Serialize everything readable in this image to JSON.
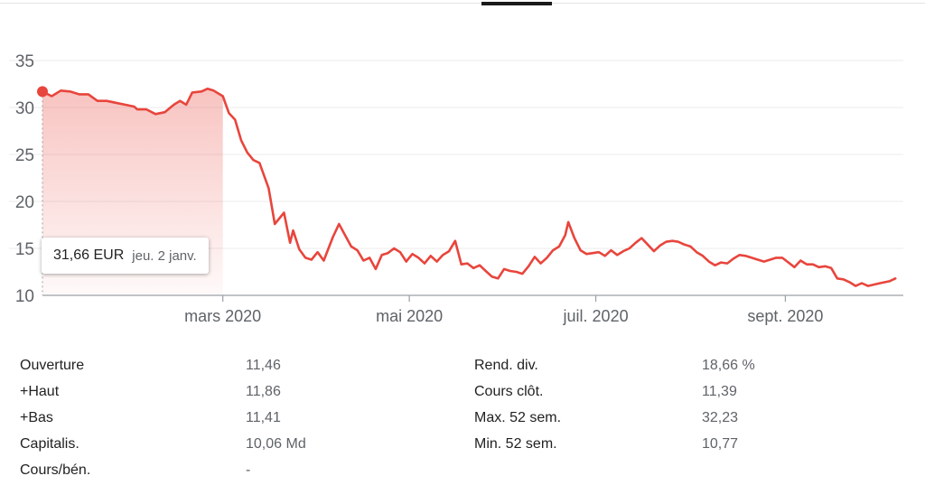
{
  "tooltip": {
    "price": "31,66 EUR",
    "date": "jeu. 2 janv."
  },
  "chart_data": {
    "type": "area",
    "ylim": [
      10,
      35
    ],
    "y_ticks": [
      10,
      15,
      20,
      25,
      30,
      35
    ],
    "x_range": [
      "2020-01-02",
      "2020-10-09"
    ],
    "x_ticks": [
      {
        "label": "mars 2020",
        "date": "2020-03-01"
      },
      {
        "label": "mai 2020",
        "date": "2020-05-01"
      },
      {
        "label": "juil. 2020",
        "date": "2020-07-01"
      },
      {
        "label": "sept. 2020",
        "date": "2020-09-01"
      }
    ],
    "highlight_range": [
      "2020-01-02",
      "2020-03-01"
    ],
    "grid": true,
    "colors": {
      "line": "#e8453c",
      "fill": "#e8453c",
      "grid": "#ebebeb",
      "axis": "#5f6368"
    },
    "points": [
      [
        "2020-01-02",
        31.7
      ],
      [
        "2020-01-05",
        31.2
      ],
      [
        "2020-01-08",
        31.8
      ],
      [
        "2020-01-11",
        31.7
      ],
      [
        "2020-01-14",
        31.4
      ],
      [
        "2020-01-17",
        31.4
      ],
      [
        "2020-01-20",
        30.7
      ],
      [
        "2020-01-23",
        30.7
      ],
      [
        "2020-01-26",
        30.5
      ],
      [
        "2020-01-29",
        30.3
      ],
      [
        "2020-02-01",
        30.1
      ],
      [
        "2020-02-02",
        29.8
      ],
      [
        "2020-02-05",
        29.8
      ],
      [
        "2020-02-08",
        29.3
      ],
      [
        "2020-02-11",
        29.5
      ],
      [
        "2020-02-14",
        30.3
      ],
      [
        "2020-02-16",
        30.7
      ],
      [
        "2020-02-18",
        30.3
      ],
      [
        "2020-02-20",
        31.6
      ],
      [
        "2020-02-23",
        31.7
      ],
      [
        "2020-02-25",
        32.0
      ],
      [
        "2020-02-27",
        31.8
      ],
      [
        "2020-03-01",
        31.2
      ],
      [
        "2020-03-03",
        29.4
      ],
      [
        "2020-03-05",
        28.7
      ],
      [
        "2020-03-07",
        26.5
      ],
      [
        "2020-03-09",
        25.2
      ],
      [
        "2020-03-11",
        24.4
      ],
      [
        "2020-03-13",
        24.1
      ],
      [
        "2020-03-16",
        21.4
      ],
      [
        "2020-03-18",
        17.6
      ],
      [
        "2020-03-21",
        18.8
      ],
      [
        "2020-03-23",
        15.6
      ],
      [
        "2020-03-24",
        16.9
      ],
      [
        "2020-03-26",
        14.9
      ],
      [
        "2020-03-28",
        14.0
      ],
      [
        "2020-03-30",
        13.8
      ],
      [
        "2020-04-01",
        14.6
      ],
      [
        "2020-04-03",
        13.7
      ],
      [
        "2020-04-06",
        16.2
      ],
      [
        "2020-04-08",
        17.6
      ],
      [
        "2020-04-10",
        16.4
      ],
      [
        "2020-04-12",
        15.2
      ],
      [
        "2020-04-14",
        14.8
      ],
      [
        "2020-04-16",
        13.7
      ],
      [
        "2020-04-18",
        14.0
      ],
      [
        "2020-04-20",
        12.8
      ],
      [
        "2020-04-22",
        14.3
      ],
      [
        "2020-04-24",
        14.5
      ],
      [
        "2020-04-26",
        15.0
      ],
      [
        "2020-04-28",
        14.6
      ],
      [
        "2020-04-30",
        13.6
      ],
      [
        "2020-05-02",
        14.4
      ],
      [
        "2020-05-04",
        14.0
      ],
      [
        "2020-05-06",
        13.4
      ],
      [
        "2020-05-08",
        14.2
      ],
      [
        "2020-05-10",
        13.6
      ],
      [
        "2020-05-12",
        14.3
      ],
      [
        "2020-05-14",
        14.7
      ],
      [
        "2020-05-16",
        15.8
      ],
      [
        "2020-05-18",
        13.3
      ],
      [
        "2020-05-20",
        13.4
      ],
      [
        "2020-05-22",
        12.9
      ],
      [
        "2020-05-24",
        13.2
      ],
      [
        "2020-05-26",
        12.6
      ],
      [
        "2020-05-28",
        12.0
      ],
      [
        "2020-05-30",
        11.8
      ],
      [
        "2020-06-01",
        12.8
      ],
      [
        "2020-06-03",
        12.6
      ],
      [
        "2020-06-05",
        12.5
      ],
      [
        "2020-06-07",
        12.3
      ],
      [
        "2020-06-09",
        13.1
      ],
      [
        "2020-06-11",
        14.1
      ],
      [
        "2020-06-13",
        13.4
      ],
      [
        "2020-06-15",
        14.0
      ],
      [
        "2020-06-17",
        14.8
      ],
      [
        "2020-06-19",
        15.2
      ],
      [
        "2020-06-21",
        16.4
      ],
      [
        "2020-06-22",
        17.8
      ],
      [
        "2020-06-24",
        16.1
      ],
      [
        "2020-06-26",
        14.8
      ],
      [
        "2020-06-28",
        14.4
      ],
      [
        "2020-06-30",
        14.5
      ],
      [
        "2020-07-02",
        14.6
      ],
      [
        "2020-07-04",
        14.2
      ],
      [
        "2020-07-06",
        14.8
      ],
      [
        "2020-07-08",
        14.3
      ],
      [
        "2020-07-10",
        14.7
      ],
      [
        "2020-07-12",
        15.0
      ],
      [
        "2020-07-14",
        15.6
      ],
      [
        "2020-07-16",
        16.1
      ],
      [
        "2020-07-18",
        15.4
      ],
      [
        "2020-07-20",
        14.7
      ],
      [
        "2020-07-22",
        15.3
      ],
      [
        "2020-07-24",
        15.7
      ],
      [
        "2020-07-26",
        15.8
      ],
      [
        "2020-07-28",
        15.7
      ],
      [
        "2020-07-30",
        15.4
      ],
      [
        "2020-08-01",
        15.2
      ],
      [
        "2020-08-03",
        14.6
      ],
      [
        "2020-08-05",
        14.2
      ],
      [
        "2020-08-07",
        13.6
      ],
      [
        "2020-08-09",
        13.2
      ],
      [
        "2020-08-11",
        13.5
      ],
      [
        "2020-08-13",
        13.4
      ],
      [
        "2020-08-15",
        13.9
      ],
      [
        "2020-08-17",
        14.3
      ],
      [
        "2020-08-19",
        14.2
      ],
      [
        "2020-08-21",
        14.0
      ],
      [
        "2020-08-23",
        13.8
      ],
      [
        "2020-08-25",
        13.6
      ],
      [
        "2020-08-27",
        13.8
      ],
      [
        "2020-08-29",
        14.0
      ],
      [
        "2020-08-31",
        14.0
      ],
      [
        "2020-09-02",
        13.5
      ],
      [
        "2020-09-04",
        13.0
      ],
      [
        "2020-09-06",
        13.7
      ],
      [
        "2020-09-08",
        13.3
      ],
      [
        "2020-09-10",
        13.3
      ],
      [
        "2020-09-12",
        13.0
      ],
      [
        "2020-09-14",
        13.1
      ],
      [
        "2020-09-16",
        12.9
      ],
      [
        "2020-09-18",
        11.8
      ],
      [
        "2020-09-20",
        11.7
      ],
      [
        "2020-09-22",
        11.4
      ],
      [
        "2020-09-24",
        11.0
      ],
      [
        "2020-09-26",
        11.3
      ],
      [
        "2020-09-28",
        11.0
      ],
      [
        "2020-10-02",
        11.3
      ],
      [
        "2020-10-05",
        11.5
      ],
      [
        "2020-10-07",
        11.8
      ]
    ]
  },
  "stats": {
    "col1": [
      {
        "label": "Ouverture",
        "value": "11,46"
      },
      {
        "label": "+Haut",
        "value": "11,86"
      },
      {
        "label": "+Bas",
        "value": "11,41"
      },
      {
        "label": "Capitalis.",
        "value": "10,06 Md"
      },
      {
        "label": "Cours/bén.",
        "value": "-"
      }
    ],
    "col2": [
      {
        "label": "Rend. div.",
        "value": "18,66 %"
      },
      {
        "label": "Cours clôt.",
        "value": "11,39"
      },
      {
        "label": "Max. 52 sem.",
        "value": "32,23"
      },
      {
        "label": "Min. 52 sem.",
        "value": "10,77"
      }
    ]
  }
}
